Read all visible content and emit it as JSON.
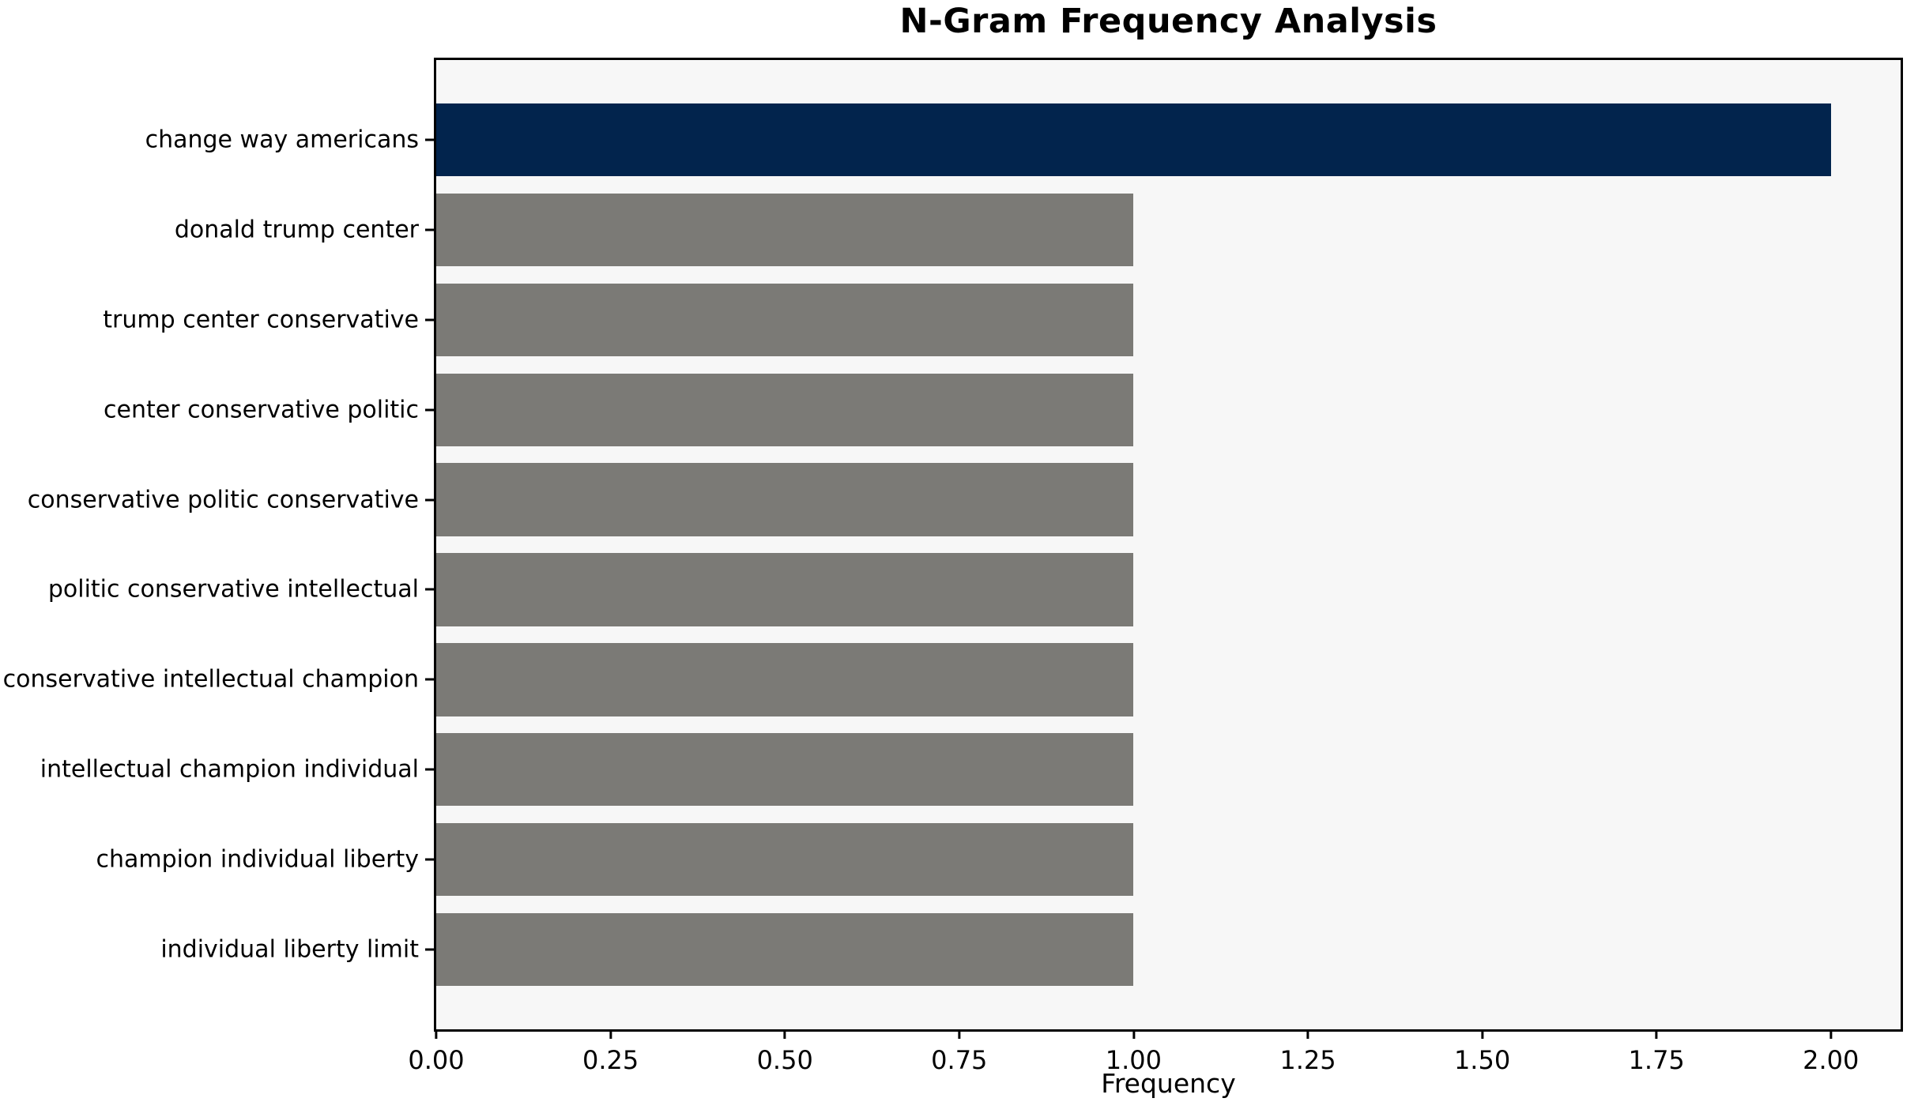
{
  "chart_data": {
    "type": "bar",
    "orientation": "horizontal",
    "title": "N-Gram Frequency Analysis",
    "xlabel": "Frequency",
    "ylabel": "",
    "categories": [
      "change way americans",
      "donald trump center",
      "trump center conservative",
      "center conservative politic",
      "conservative politic conservative",
      "politic conservative intellectual",
      "conservative intellectual champion",
      "intellectual champion individual",
      "champion individual liberty",
      "individual liberty limit"
    ],
    "values": [
      2.0,
      1.0,
      1.0,
      1.0,
      1.0,
      1.0,
      1.0,
      1.0,
      1.0,
      1.0
    ],
    "xlim": [
      0,
      2.1
    ],
    "xtick_labels": [
      "0.00",
      "0.25",
      "0.50",
      "0.75",
      "1.00",
      "1.25",
      "1.50",
      "1.75",
      "2.00"
    ],
    "xtick_values": [
      0,
      0.25,
      0.5,
      0.75,
      1.0,
      1.25,
      1.5,
      1.75,
      2.0
    ],
    "grid": false,
    "legend_position": "none",
    "colors": {
      "highlight_bar": "#02244D",
      "default_bar": "#7B7A76",
      "plot_background": "#F7F7F7",
      "figure_background": "#FFFFFF",
      "axis": "#000000"
    }
  }
}
